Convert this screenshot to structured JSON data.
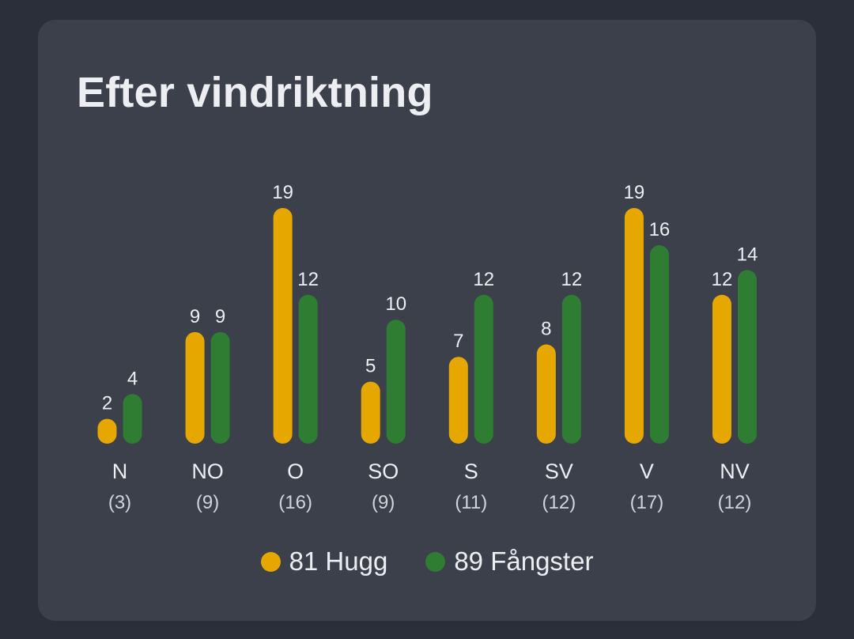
{
  "title": "Efter vindriktning",
  "colors": {
    "hugg": "#e6a800",
    "fangster": "#2e7d32",
    "text": "#eceef2",
    "subtext": "#d0d3da"
  },
  "legend": {
    "hugg": "81 Hugg",
    "fangster": "89 Fångster"
  },
  "chart_data": {
    "type": "bar",
    "title": "Efter vindriktning",
    "categories": [
      "N",
      "NO",
      "O",
      "SO",
      "S",
      "SV",
      "V",
      "NV"
    ],
    "category_counts": [
      "(3)",
      "(9)",
      "(16)",
      "(9)",
      "(11)",
      "(12)",
      "(17)",
      "(12)"
    ],
    "series": [
      {
        "name": "81 Hugg",
        "values": [
          2,
          9,
          19,
          5,
          7,
          8,
          19,
          12
        ]
      },
      {
        "name": "89 Fångster",
        "values": [
          4,
          9,
          12,
          10,
          12,
          12,
          16,
          14
        ]
      }
    ],
    "ylim": [
      0,
      19
    ],
    "grid": false,
    "data_labels": true,
    "legend_position": "bottom"
  }
}
